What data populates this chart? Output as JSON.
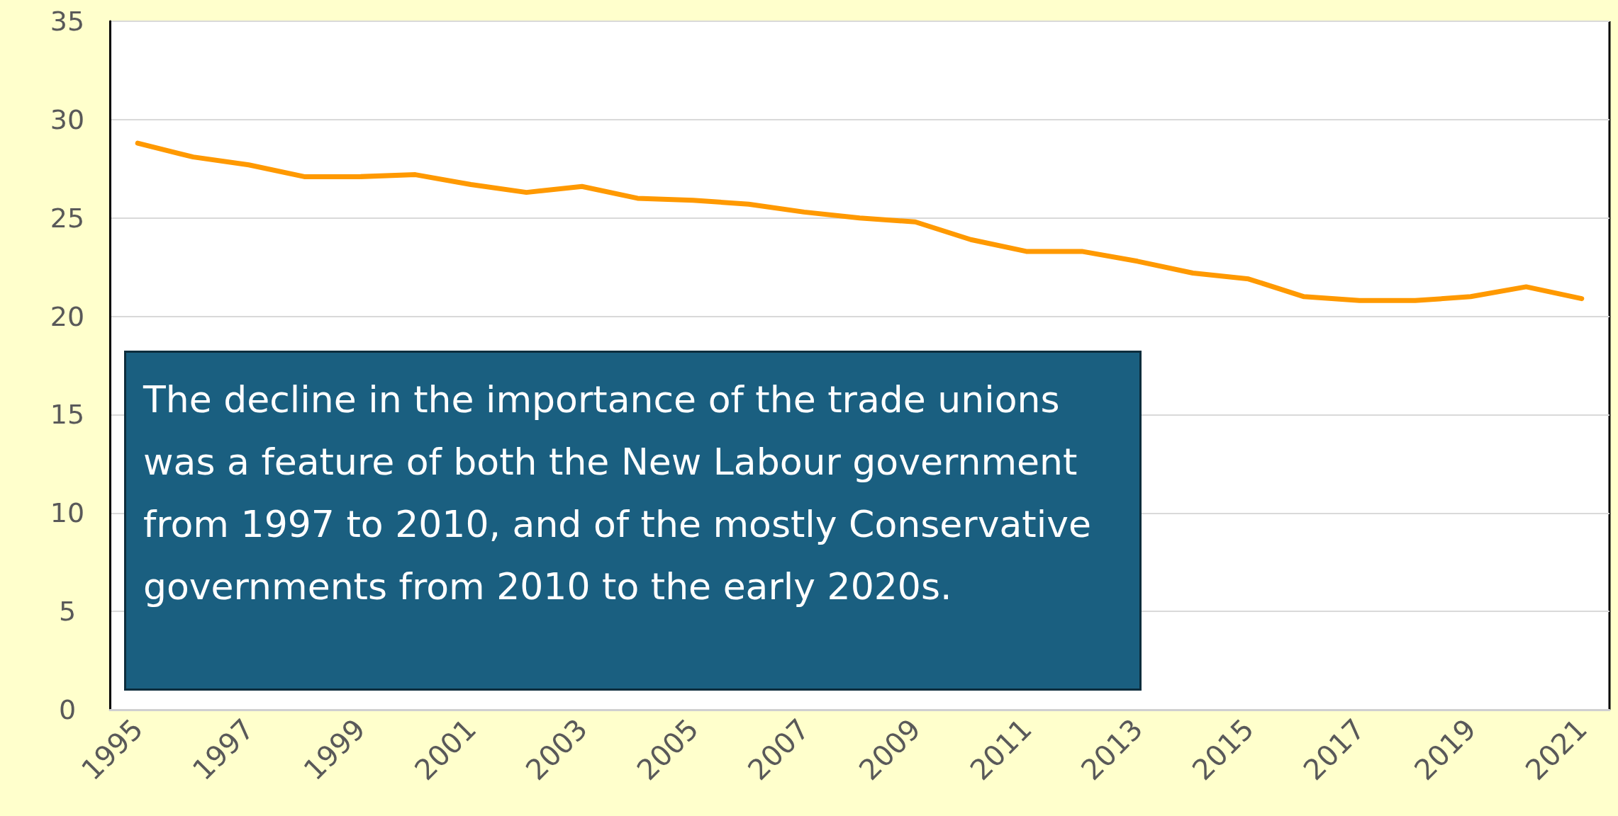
{
  "chart_data": {
    "type": "line",
    "categories": [
      "1995",
      null,
      "1997",
      null,
      "1999",
      null,
      "2001",
      null,
      "2003",
      null,
      "2005",
      null,
      "2007",
      null,
      "2009",
      null,
      "2011",
      null,
      "2013",
      null,
      "2015",
      null,
      "2017",
      null,
      "2019",
      null,
      "2021"
    ],
    "series": [
      {
        "color": "#ff9900",
        "values": [
          28.8,
          28.1,
          27.7,
          27.1,
          27.1,
          27.2,
          26.7,
          26.3,
          26.6,
          26.0,
          25.9,
          25.7,
          25.3,
          25.0,
          24.8,
          23.9,
          23.3,
          23.3,
          22.8,
          22.2,
          21.9,
          21.0,
          20.8,
          20.8,
          21.0,
          21.5,
          20.9
        ]
      }
    ],
    "ylim": [
      0,
      35
    ],
    "yticks": [
      0,
      5,
      10,
      15,
      20,
      25,
      30,
      35
    ],
    "grid": "y",
    "marker": "none",
    "line_style": "solid",
    "annotations": [
      "The decline in the importance of the trade unions was a feature of both the New Labour government from 1997 to 2010, and of the mostly Conservative governments from 2010 to the early 2020s."
    ]
  }
}
